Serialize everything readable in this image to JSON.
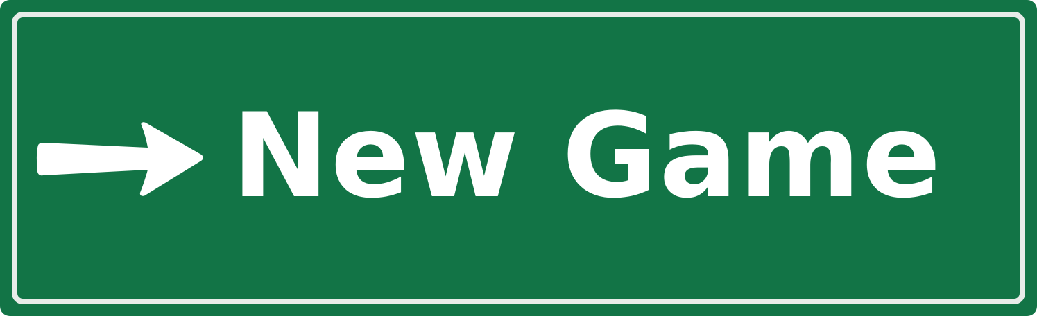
{
  "button": {
    "label": "New Game",
    "icon": "arrow-right-icon"
  },
  "colors": {
    "background": "#127446",
    "border": "#e8ece9",
    "text": "#ffffff"
  }
}
